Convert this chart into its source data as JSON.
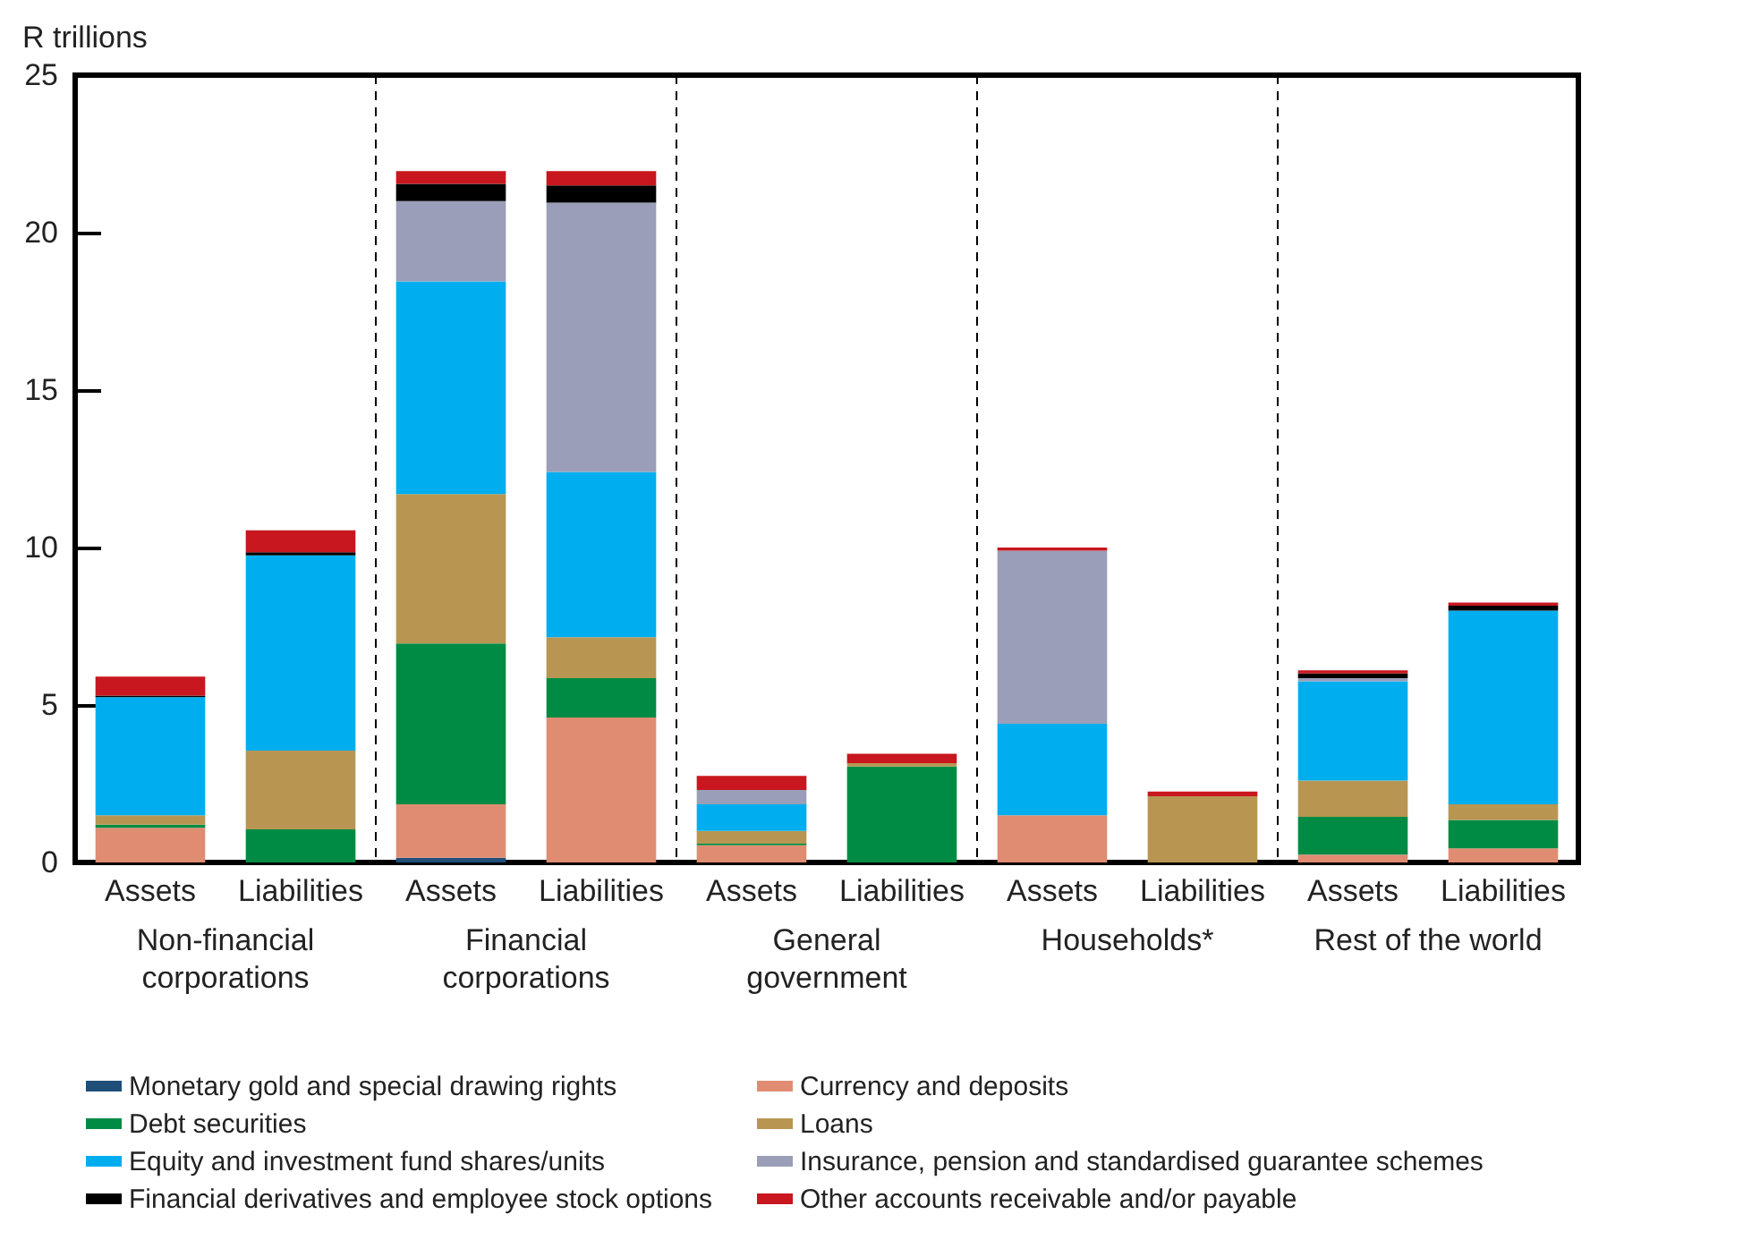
{
  "chart_data": {
    "type": "bar",
    "stacked": true,
    "ylabel": "R trillions",
    "categories": [
      "Assets",
      "Liabilities",
      "Assets",
      "Liabilities",
      "Assets",
      "Liabilities",
      "Assets",
      "Liabilities",
      "Assets",
      "Liabilities"
    ],
    "annotations": [
      "Non-financial corporations",
      "Financial corporations",
      "General government",
      "Households*",
      "Rest of the world"
    ],
    "ylim": [
      0,
      25
    ],
    "yticks": [
      0,
      5,
      10,
      15,
      20,
      25
    ],
    "grid": false,
    "legend": "bottom",
    "series": [
      {
        "name": "Monetary gold and special drawing rights",
        "color": "#1f4e79",
        "values": [
          null,
          null,
          0.15,
          null,
          null,
          null,
          null,
          null,
          null,
          null
        ]
      },
      {
        "name": "Currency and deposits",
        "color": "#e08c72",
        "values": [
          1.1,
          null,
          1.7,
          4.6,
          0.55,
          null,
          1.5,
          null,
          0.25,
          0.45
        ]
      },
      {
        "name": "Debt securities",
        "color": "#008b45",
        "values": [
          0.1,
          1.05,
          5.1,
          1.25,
          0.05,
          3.05,
          null,
          null,
          1.2,
          0.9
        ]
      },
      {
        "name": "Loans",
        "color": "#b89652",
        "values": [
          0.3,
          2.5,
          4.75,
          1.3,
          0.4,
          0.1,
          null,
          2.1,
          1.15,
          0.5
        ]
      },
      {
        "name": "Equity and investment fund shares/units",
        "color": "#00aeef",
        "values": [
          3.75,
          6.2,
          6.75,
          5.25,
          0.85,
          null,
          2.9,
          null,
          3.15,
          6.15
        ]
      },
      {
        "name": "Insurance, pension and standardised guarantee schemes",
        "color": "#9a9eb8",
        "values": [
          null,
          null,
          2.55,
          8.55,
          0.45,
          null,
          5.5,
          null,
          0.1,
          null
        ]
      },
      {
        "name": "Financial derivatives and employee stock options",
        "color": "#000000",
        "values": [
          0.05,
          0.1,
          0.55,
          0.55,
          null,
          null,
          null,
          null,
          0.15,
          0.15
        ]
      },
      {
        "name": "Other accounts receivable and/or payable",
        "color": "#c8171e",
        "values": [
          0.6,
          0.7,
          0.4,
          0.45,
          0.45,
          0.3,
          0.1,
          0.15,
          0.1,
          0.1
        ]
      }
    ]
  }
}
